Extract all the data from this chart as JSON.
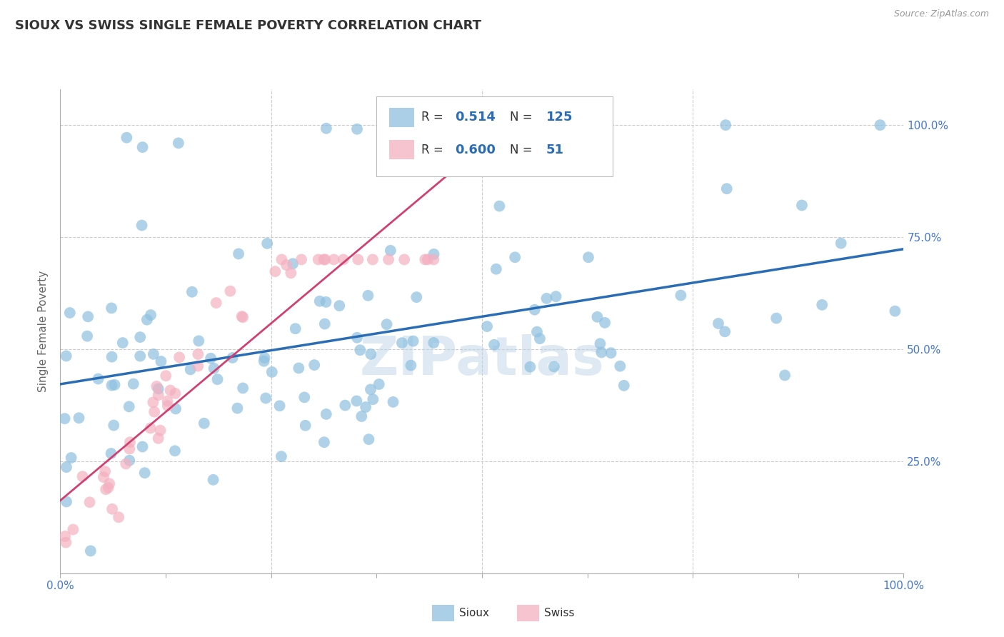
{
  "title": "SIOUX VS SWISS SINGLE FEMALE POVERTY CORRELATION CHART",
  "source": "Source: ZipAtlas.com",
  "ylabel": "Single Female Poverty",
  "watermark": "ZIPatlas",
  "sioux_R": 0.514,
  "sioux_N": 125,
  "swiss_R": 0.6,
  "swiss_N": 51,
  "sioux_color": "#8ec0e0",
  "swiss_color": "#f4b0c0",
  "sioux_line_color": "#2a6db5",
  "swiss_line_color": "#d04070",
  "background_color": "#ffffff",
  "grid_color": "#cccccc",
  "title_color": "#333333",
  "tick_label_color": "#4477cc",
  "legend_num_color": "#2a6db5"
}
